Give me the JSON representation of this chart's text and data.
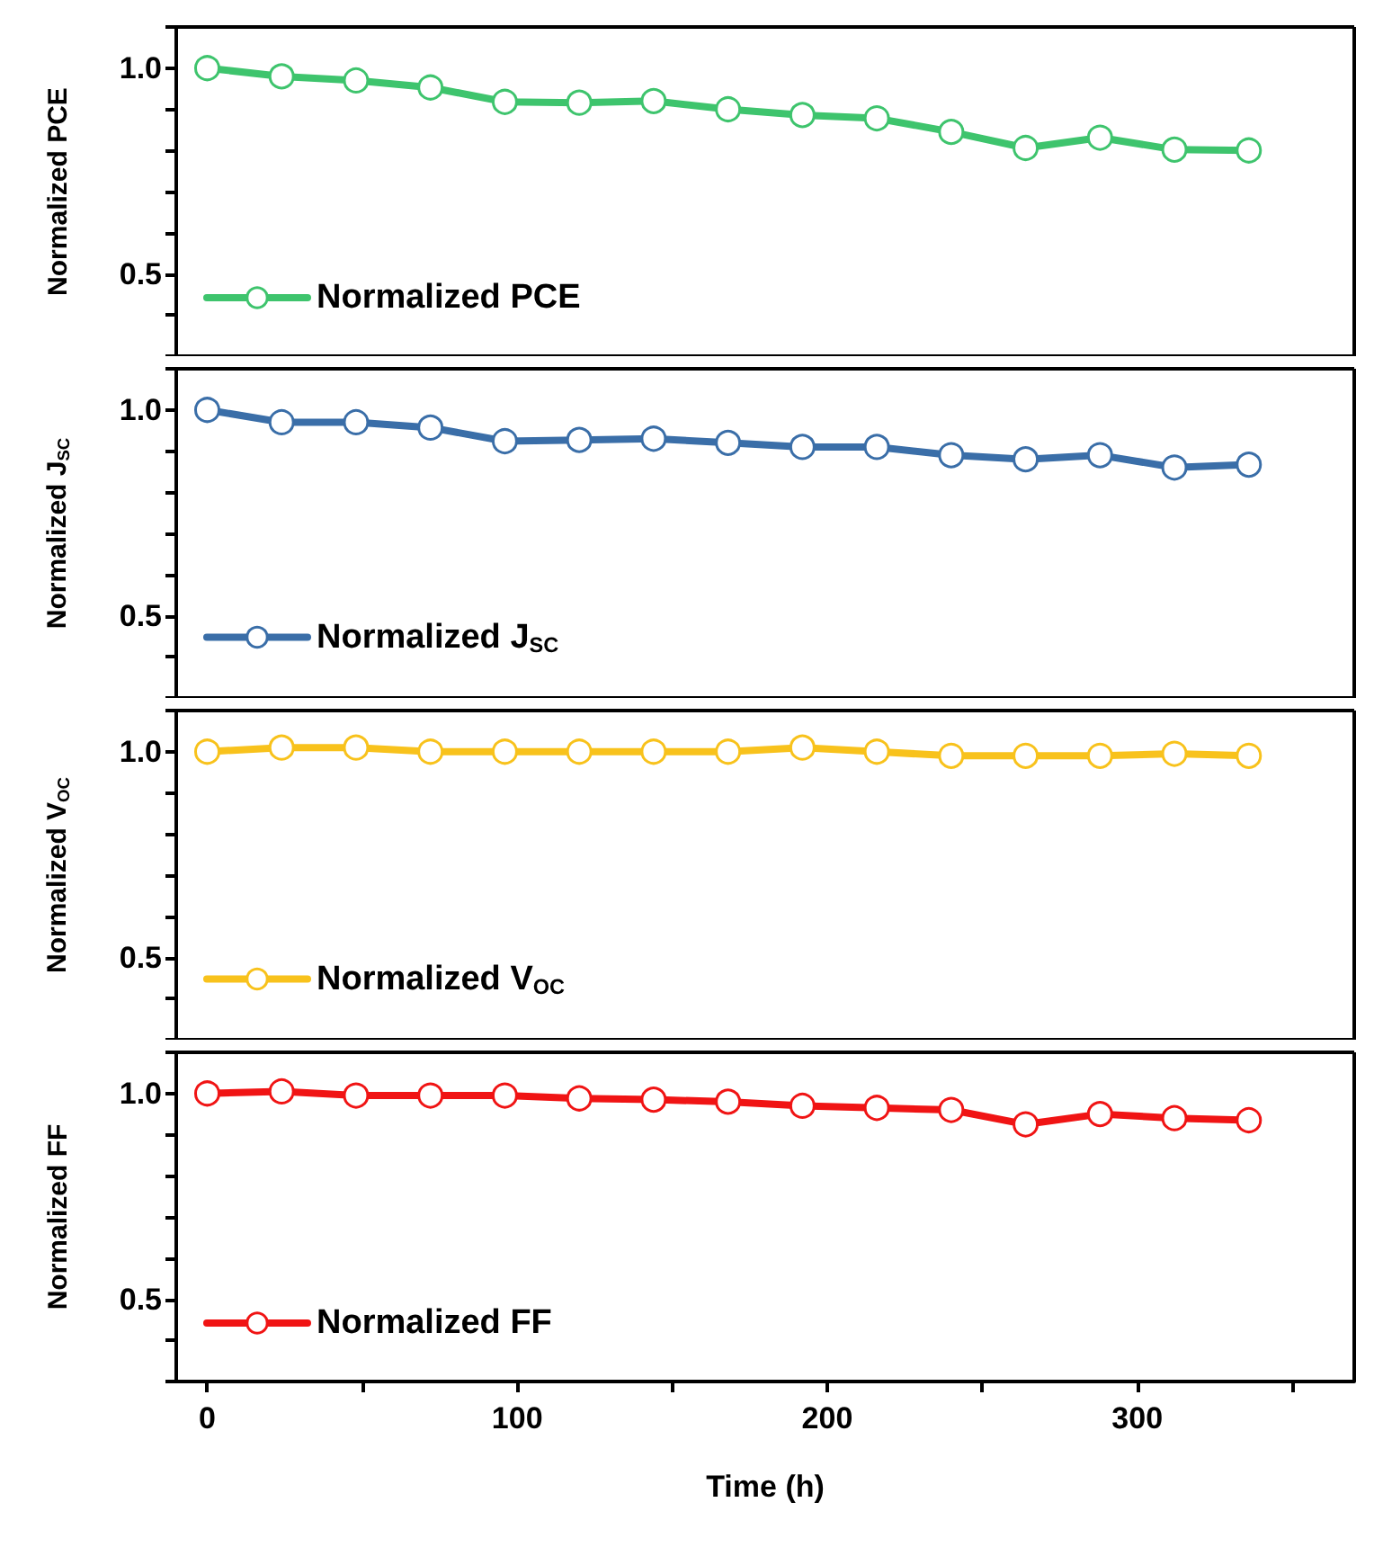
{
  "chart_data": [
    {
      "type": "line",
      "ylabel": "Normalized PCE",
      "x": [
        0,
        24,
        48,
        72,
        96,
        120,
        144,
        168,
        192,
        216,
        240,
        264,
        288,
        312,
        336
      ],
      "series": [
        {
          "name": "Normalized PCE",
          "color": "#3ec46d",
          "values": [
            1.0,
            0.98,
            0.97,
            0.953,
            0.918,
            0.916,
            0.92,
            0.9,
            0.886,
            0.878,
            0.845,
            0.806,
            0.831,
            0.802,
            0.8
          ]
        }
      ],
      "xlim": [
        -10,
        370
      ],
      "xticks": [
        0,
        {
          "value": 50,
          "label": null
        },
        {
          "value": 100,
          "label": null
        },
        {
          "value": 150,
          "label": null
        },
        {
          "value": 200,
          "label": null
        },
        {
          "value": 250,
          "label": null
        },
        {
          "value": 300,
          "label": null
        },
        {
          "value": 350,
          "label": null
        }
      ],
      "ylim": [
        0.3,
        1.1
      ],
      "yticks": [
        {
          "value": 0.3,
          "label": null
        },
        {
          "value": 0.4,
          "label": null
        },
        {
          "value": 0.5,
          "label": "0.5"
        },
        {
          "value": 0.6,
          "label": null
        },
        {
          "value": 0.7,
          "label": null
        },
        {
          "value": 0.8,
          "label": null
        },
        {
          "value": 0.9,
          "label": null
        },
        {
          "value": 1.0,
          "label": "1.0"
        },
        {
          "value": 1.1,
          "label": null
        }
      ],
      "legend": "bottom left",
      "marker": "circle",
      "tick_labels": "y",
      "grid": false
    },
    {
      "type": "line",
      "ylabel": "Normalized J$_{SC}$",
      "x": [
        0,
        24,
        48,
        72,
        96,
        120,
        144,
        168,
        192,
        216,
        240,
        264,
        288,
        312,
        336
      ],
      "series": [
        {
          "name": "Normalized J$_{SC}$",
          "color": "#3a6ea8",
          "values": [
            1.0,
            0.97,
            0.97,
            0.957,
            0.924,
            0.927,
            0.93,
            0.92,
            0.91,
            0.91,
            0.89,
            0.88,
            0.89,
            0.86,
            0.867
          ]
        }
      ],
      "xlim": [
        -10,
        370
      ],
      "xticks": [
        {
          "value": 0,
          "label": null
        },
        {
          "value": 50,
          "label": null
        },
        {
          "value": 100,
          "label": null
        },
        {
          "value": 150,
          "label": null
        },
        {
          "value": 200,
          "label": null
        },
        {
          "value": 250,
          "label": null
        },
        {
          "value": 300,
          "label": null
        },
        {
          "value": 350,
          "label": null
        }
      ],
      "ylim": [
        0.3,
        1.1
      ],
      "yticks": [
        {
          "value": 0.3,
          "label": null
        },
        {
          "value": 0.4,
          "label": null
        },
        {
          "value": 0.5,
          "label": "0.5"
        },
        {
          "value": 0.6,
          "label": null
        },
        {
          "value": 0.7,
          "label": null
        },
        {
          "value": 0.8,
          "label": null
        },
        {
          "value": 0.9,
          "label": null
        },
        {
          "value": 1.0,
          "label": "1.0"
        },
        {
          "value": 1.1,
          "label": null
        }
      ],
      "legend": "bottom left",
      "marker": "circle",
      "tick_labels": "y",
      "grid": false
    },
    {
      "type": "line",
      "ylabel": "Normalized V$_{OC}$",
      "x": [
        0,
        24,
        48,
        72,
        96,
        120,
        144,
        168,
        192,
        216,
        240,
        264,
        288,
        312,
        336
      ],
      "series": [
        {
          "name": "Normalized V$_{OC}$",
          "color": "#f8c21c",
          "values": [
            1.0,
            1.01,
            1.01,
            1.0,
            1.0,
            1.0,
            1.0,
            1.0,
            1.01,
            1.0,
            0.99,
            0.99,
            0.99,
            0.995,
            0.99
          ]
        }
      ],
      "xlim": [
        -10,
        370
      ],
      "xticks": [
        {
          "value": 0,
          "label": null
        },
        {
          "value": 50,
          "label": null
        },
        {
          "value": 100,
          "label": null
        },
        {
          "value": 150,
          "label": null
        },
        {
          "value": 200,
          "label": null
        },
        {
          "value": 250,
          "label": null
        },
        {
          "value": 300,
          "label": null
        },
        {
          "value": 350,
          "label": null
        }
      ],
      "ylim": [
        0.3,
        1.1
      ],
      "yticks": [
        {
          "value": 0.3,
          "label": null
        },
        {
          "value": 0.4,
          "label": null
        },
        {
          "value": 0.5,
          "label": "0.5"
        },
        {
          "value": 0.6,
          "label": null
        },
        {
          "value": 0.7,
          "label": null
        },
        {
          "value": 0.8,
          "label": null
        },
        {
          "value": 0.9,
          "label": null
        },
        {
          "value": 1.0,
          "label": "1.0"
        },
        {
          "value": 1.1,
          "label": null
        }
      ],
      "legend": "bottom left",
      "marker": "circle",
      "tick_labels": "y",
      "grid": false
    },
    {
      "type": "line",
      "ylabel": "Normalized FF",
      "xlabel": "Time (h)",
      "x": [
        0,
        24,
        48,
        72,
        96,
        120,
        144,
        168,
        192,
        216,
        240,
        264,
        288,
        312,
        336
      ],
      "series": [
        {
          "name": "Normalized FF",
          "color": "#f01414",
          "values": [
            1.0,
            1.005,
            0.995,
            0.995,
            0.995,
            0.988,
            0.985,
            0.98,
            0.97,
            0.965,
            0.96,
            0.925,
            0.95,
            0.94,
            0.935
          ]
        }
      ],
      "xlim": [
        -10,
        370
      ],
      "xticks": [
        0,
        {
          "value": 50,
          "label": null
        },
        100,
        {
          "value": 150,
          "label": null
        },
        200,
        {
          "value": 250,
          "label": null
        },
        300,
        {
          "value": 350,
          "label": null
        }
      ],
      "ylim": [
        0.3,
        1.1
      ],
      "yticks": [
        {
          "value": 0.3,
          "label": null
        },
        {
          "value": 0.4,
          "label": null
        },
        {
          "value": 0.5,
          "label": "0.5"
        },
        {
          "value": 0.6,
          "label": null
        },
        {
          "value": 0.7,
          "label": null
        },
        {
          "value": 0.8,
          "label": null
        },
        {
          "value": 0.9,
          "label": null
        },
        {
          "value": 1.0,
          "label": "1.0"
        },
        {
          "value": 1.1,
          "label": null
        }
      ],
      "legend": "bottom left",
      "marker": "circle",
      "grid": false
    }
  ]
}
